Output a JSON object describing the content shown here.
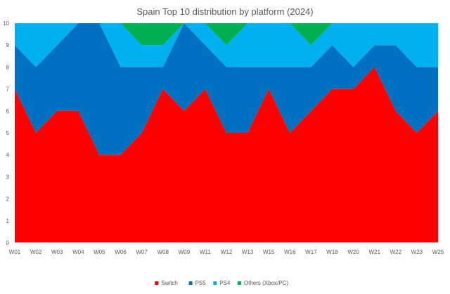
{
  "chart_data": {
    "type": "area",
    "stacked": true,
    "title": "Spain Top 10 distribution by platform (2024)",
    "xlabel": "",
    "ylabel": "",
    "ylim": [
      0,
      10
    ],
    "yticks": [
      0,
      1,
      2,
      3,
      4,
      5,
      6,
      7,
      8,
      9,
      10
    ],
    "categories": [
      "W01",
      "W02",
      "W03",
      "W04",
      "W05",
      "W06",
      "W07",
      "W08",
      "W09",
      "W11",
      "W12",
      "W13",
      "W15",
      "W16",
      "W17",
      "W18",
      "W20",
      "W21",
      "W22",
      "W23",
      "W25"
    ],
    "grid": false,
    "legend_position": "bottom",
    "series": [
      {
        "name": "Switch",
        "color": "#ff0000",
        "values": [
          7,
          5,
          6,
          6,
          4,
          4,
          5,
          7,
          6,
          7,
          5,
          5,
          7,
          5,
          6,
          7,
          7,
          8,
          6,
          5,
          6
        ]
      },
      {
        "name": "PS5",
        "color": "#0070c0",
        "values": [
          2,
          3,
          3,
          4,
          6,
          4,
          3,
          1,
          4,
          2,
          3,
          3,
          1,
          3,
          2,
          2,
          1,
          1,
          3,
          3,
          2
        ]
      },
      {
        "name": "PS4",
        "color": "#00b0f0",
        "values": [
          1,
          2,
          1,
          0,
          0,
          2,
          1,
          1,
          0,
          1,
          1,
          2,
          2,
          2,
          1,
          1,
          2,
          1,
          1,
          2,
          2
        ]
      },
      {
        "name": "Others (Xbox/PC)",
        "color": "#00b050",
        "values": [
          0,
          0,
          0,
          0,
          0,
          0,
          1,
          1,
          0,
          0,
          1,
          0,
          0,
          0,
          1,
          0,
          0,
          0,
          0,
          0,
          0
        ]
      }
    ]
  }
}
